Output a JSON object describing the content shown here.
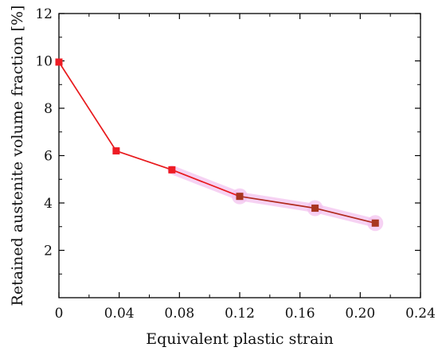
{
  "chart_data": {
    "type": "line",
    "xlabel": "Equivalent plastic strain",
    "ylabel": "Retained austenite volume fraction [%]",
    "xlim": [
      0,
      0.24
    ],
    "ylim": [
      0,
      12
    ],
    "x_ticks": [
      "0",
      "0.04",
      "0.08",
      "0.12",
      "0.16",
      "0.20",
      "0.24"
    ],
    "y_ticks": [
      "2",
      "4",
      "6",
      "8",
      "10",
      "12"
    ],
    "grid": false,
    "series": [
      {
        "x": [
          0,
          0.038,
          0.075,
          0.12,
          0.17,
          0.21
        ],
        "y": [
          9.95,
          6.2,
          5.4,
          4.28,
          3.78,
          3.15
        ],
        "line_colors": [
          "#e8191c",
          "#e8191c",
          "#e8191c",
          "#b02a1c",
          "#b02a1c"
        ],
        "marker_colors": [
          "#ee1c24",
          "#ee1c24",
          "#ee1c24",
          "#a8351f",
          "#a8351f",
          "#a8351f"
        ],
        "highlight_color": "#f3c3ef"
      }
    ]
  }
}
